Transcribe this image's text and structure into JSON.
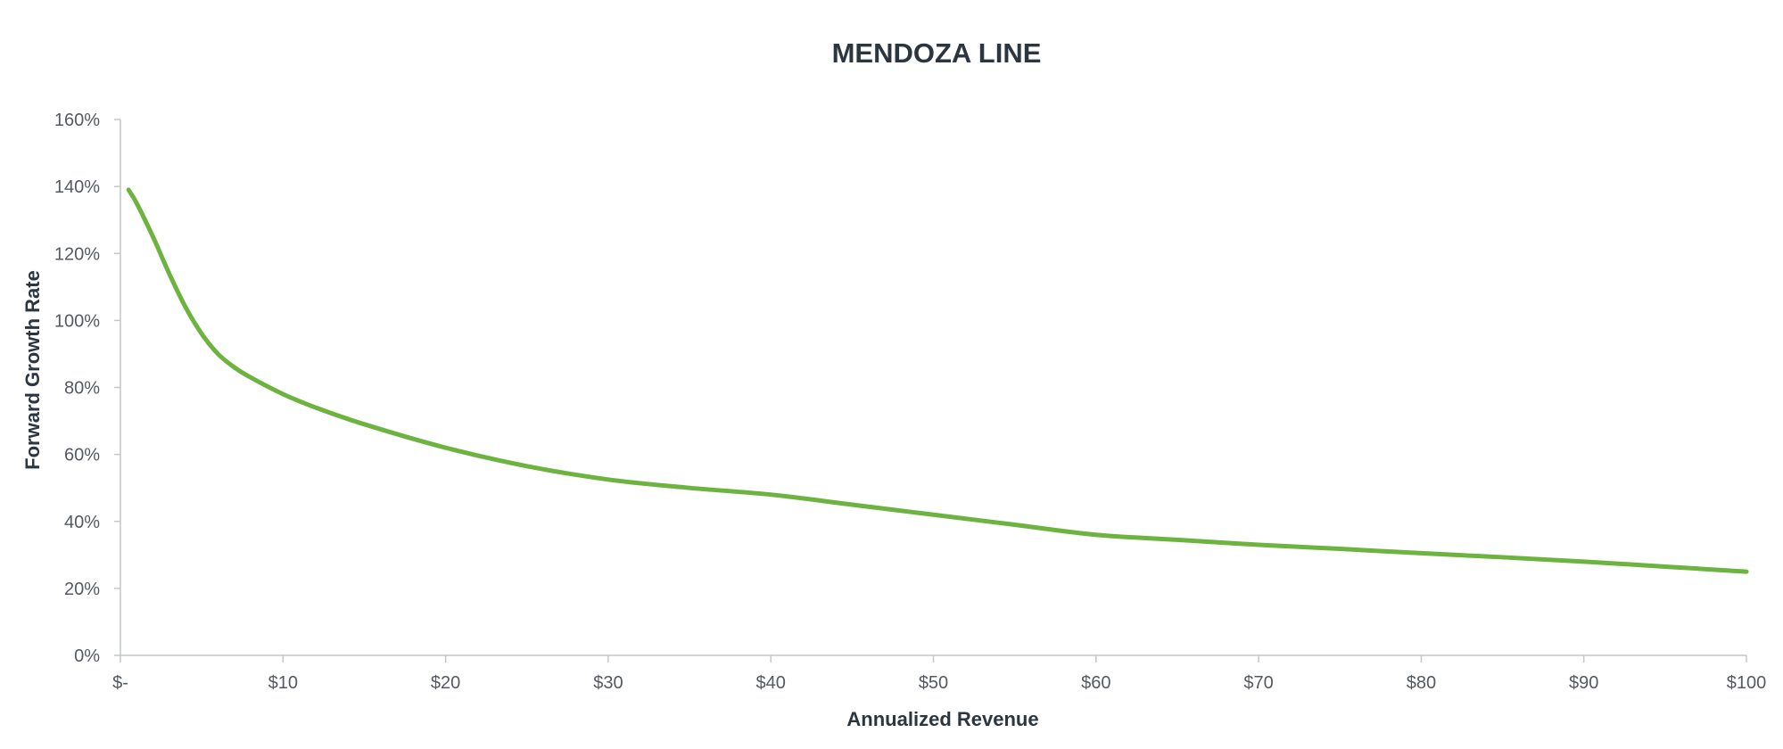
{
  "chart_data": {
    "type": "line",
    "title": "MENDOZA LINE",
    "xlabel": "Annualized Revenue",
    "ylabel": "Forward Growth Rate",
    "xlim": [
      0,
      100
    ],
    "ylim": [
      0,
      1.6
    ],
    "x_ticks": [
      0,
      10,
      20,
      30,
      40,
      50,
      60,
      70,
      80,
      90,
      100
    ],
    "x_tick_labels": [
      "$-",
      "$10",
      "$20",
      "$30",
      "$40",
      "$50",
      "$60",
      "$70",
      "$80",
      "$90",
      "$100"
    ],
    "y_ticks": [
      0,
      0.2,
      0.4,
      0.6,
      0.8,
      1.0,
      1.2,
      1.4,
      1.6
    ],
    "y_tick_labels": [
      "0%",
      "20%",
      "40%",
      "60%",
      "80%",
      "100%",
      "120%",
      "140%",
      "160%"
    ],
    "grid": false,
    "legend": "none",
    "series": [
      {
        "color": "#6db33f",
        "x": [
          0.5,
          1,
          2,
          3,
          4,
          5,
          6,
          7,
          8,
          10,
          12,
          15,
          20,
          25,
          30,
          35,
          40,
          45,
          50,
          55,
          60,
          65,
          70,
          75,
          80,
          85,
          90,
          95,
          100
        ],
        "y": [
          1.39,
          1.35,
          1.25,
          1.14,
          1.04,
          0.96,
          0.9,
          0.86,
          0.83,
          0.78,
          0.74,
          0.69,
          0.62,
          0.565,
          0.525,
          0.5,
          0.48,
          0.45,
          0.42,
          0.39,
          0.36,
          0.345,
          0.33,
          0.318,
          0.305,
          0.293,
          0.28,
          0.265,
          0.25
        ]
      }
    ]
  }
}
